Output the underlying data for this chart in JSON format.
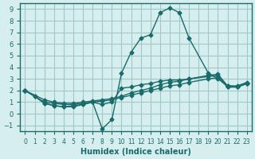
{
  "xlabel": "Humidex (Indice chaleur)",
  "ylabel": "",
  "bg_color": "#d6eeed",
  "grid_color": "#a0c8c8",
  "line_color": "#1a6b6b",
  "xlim": [
    -0.5,
    23.5
  ],
  "ylim": [
    -1.5,
    9.5
  ],
  "xticks": [
    0,
    1,
    2,
    3,
    4,
    5,
    6,
    7,
    8,
    9,
    10,
    11,
    12,
    13,
    14,
    15,
    16,
    17,
    18,
    19,
    20,
    21,
    22,
    23
  ],
  "yticks": [
    -1,
    0,
    1,
    2,
    3,
    4,
    5,
    6,
    7,
    8,
    9
  ],
  "lines": [
    {
      "x": [
        0,
        1,
        2,
        3,
        4,
        5,
        6,
        7,
        8,
        9,
        10,
        11,
        12,
        13,
        14,
        15,
        16,
        17,
        19,
        20,
        21,
        22,
        23
      ],
      "y": [
        2.0,
        1.5,
        0.9,
        0.7,
        0.6,
        0.6,
        0.8,
        1.0,
        -1.3,
        -0.5,
        3.5,
        5.3,
        6.5,
        6.8,
        8.7,
        9.1,
        8.7,
        6.5,
        3.5,
        3.0,
        2.4,
        2.3,
        2.6
      ]
    },
    {
      "x": [
        0,
        1,
        2,
        3,
        4,
        5,
        6,
        7,
        8,
        9,
        10,
        11,
        12,
        13,
        14,
        15,
        16,
        17,
        19,
        20,
        21,
        22,
        23
      ],
      "y": [
        2.0,
        1.5,
        0.9,
        0.7,
        0.6,
        0.7,
        0.8,
        1.0,
        0.8,
        1.0,
        2.2,
        2.3,
        2.5,
        2.6,
        2.8,
        2.9,
        2.9,
        3.0,
        3.2,
        3.3,
        2.3,
        2.3,
        2.6
      ]
    },
    {
      "x": [
        0,
        2,
        3,
        4,
        5,
        6,
        7,
        8,
        9,
        10,
        11,
        12,
        13,
        14,
        15,
        16,
        17,
        19,
        20,
        21,
        22,
        23
      ],
      "y": [
        2.0,
        1.0,
        0.9,
        0.8,
        0.8,
        0.9,
        1.0,
        1.1,
        1.2,
        1.4,
        1.6,
        1.8,
        2.0,
        2.2,
        2.4,
        2.5,
        2.7,
        3.0,
        3.1,
        2.3,
        2.3,
        2.6
      ]
    },
    {
      "x": [
        0,
        2,
        3,
        4,
        5,
        6,
        7,
        8,
        9,
        10,
        11,
        12,
        13,
        14,
        15,
        16,
        17,
        19,
        20,
        21,
        22,
        23
      ],
      "y": [
        2.0,
        1.2,
        1.0,
        0.9,
        0.9,
        1.0,
        1.1,
        1.2,
        1.3,
        1.5,
        1.8,
        2.0,
        2.2,
        2.5,
        2.7,
        2.8,
        3.0,
        3.3,
        3.4,
        2.4,
        2.4,
        2.7
      ]
    }
  ]
}
